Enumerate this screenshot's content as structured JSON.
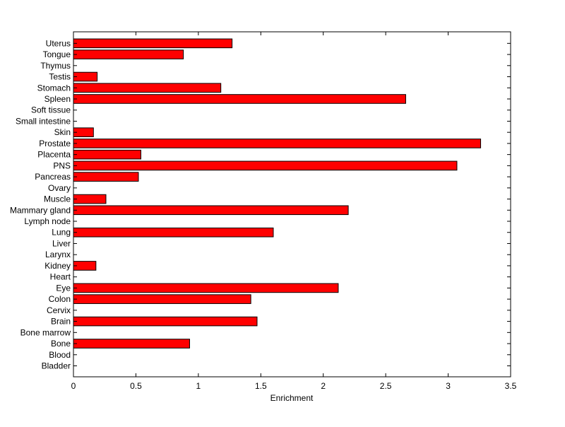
{
  "chart_data": {
    "type": "bar",
    "orientation": "horizontal",
    "title": "",
    "xlabel": "Enrichment",
    "ylabel": "",
    "xlim": [
      0,
      3.5
    ],
    "xticks": [
      0,
      0.5,
      1,
      1.5,
      2,
      2.5,
      3,
      3.5
    ],
    "xtick_labels": [
      "0",
      "0.5",
      "1",
      "1.5",
      "2",
      "2.5",
      "3",
      "3.5"
    ],
    "grid": false,
    "legend": "none",
    "bar_color": "#ff0000",
    "bar_edge_color": "#000000",
    "categories": [
      "Bladder",
      "Blood",
      "Bone",
      "Bone marrow",
      "Brain",
      "Cervix",
      "Colon",
      "Eye",
      "Heart",
      "Kidney",
      "Larynx",
      "Liver",
      "Lung",
      "Lymph node",
      "Mammary gland",
      "Muscle",
      "Ovary",
      "Pancreas",
      "PNS",
      "Placenta",
      "Prostate",
      "Skin",
      "Small intestine",
      "Soft tissue",
      "Spleen",
      "Stomach",
      "Testis",
      "Thymus",
      "Tongue",
      "Uterus"
    ],
    "values": [
      0,
      0,
      0.93,
      0,
      1.47,
      0,
      1.42,
      2.12,
      0,
      0.18,
      0,
      0,
      1.6,
      0,
      2.2,
      0.26,
      0,
      0.52,
      3.07,
      0.54,
      3.26,
      0.16,
      0,
      0,
      2.66,
      1.18,
      0.19,
      0,
      0.88,
      1.27
    ]
  }
}
